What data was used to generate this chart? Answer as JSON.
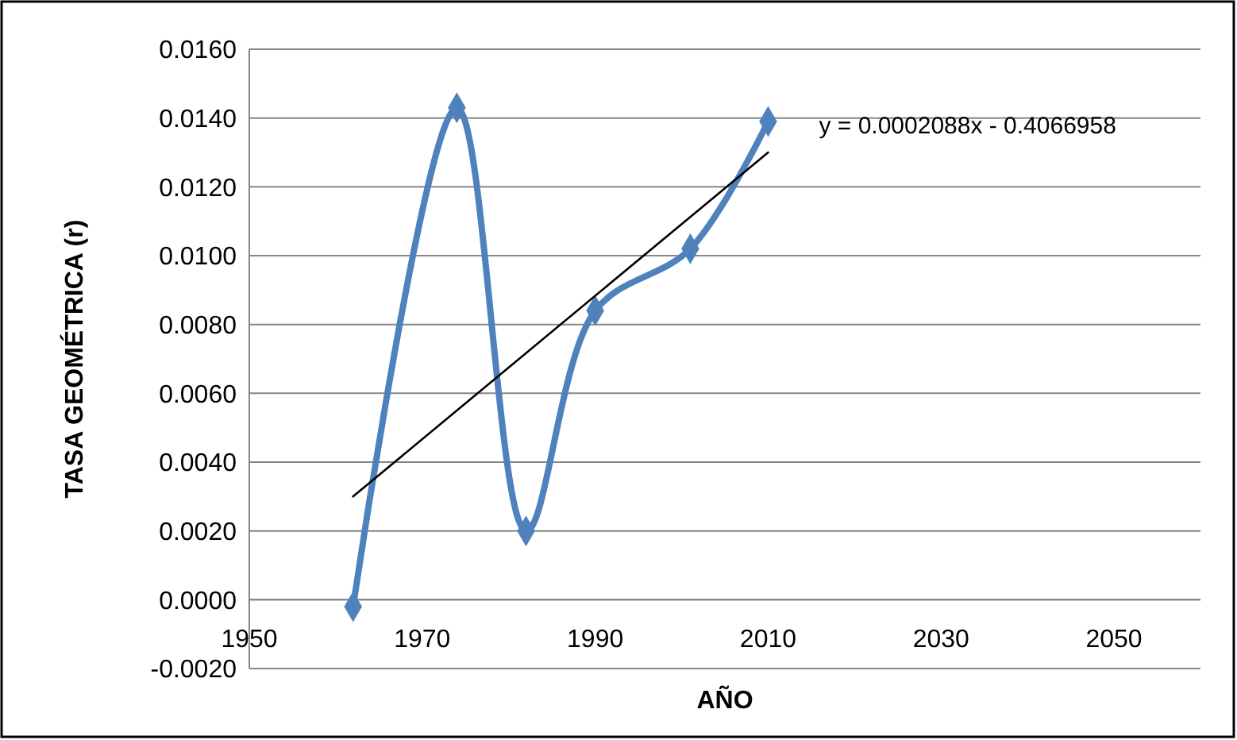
{
  "chart_data": {
    "type": "line",
    "xlabel": "AÑO",
    "ylabel": "TASA GEOMÉTRICA (r)",
    "xlim": [
      1950,
      2060
    ],
    "xticks": [
      1950,
      1970,
      1990,
      2010,
      2030,
      2050
    ],
    "ylim": [
      -0.002,
      0.016
    ],
    "yticks": [
      {
        "value": -0.002,
        "label": "-0.0020"
      },
      {
        "value": 0,
        "label": "0.0000"
      },
      {
        "value": 0.002,
        "label": "0.0020"
      },
      {
        "value": 0.004,
        "label": "0.0040"
      },
      {
        "value": 0.006,
        "label": "0.0060"
      },
      {
        "value": 0.008,
        "label": "0.0080"
      },
      {
        "value": 0.01,
        "label": "0.0100"
      },
      {
        "value": 0.012,
        "label": "0.0120"
      },
      {
        "value": 0.014,
        "label": "0.0140"
      },
      {
        "value": 0.016,
        "label": "0.0160"
      }
    ],
    "grid": "y",
    "series": [
      {
        "color": "#4f81bd",
        "x": [
          1962,
          1974,
          1982,
          1990,
          2001,
          2010
        ],
        "values": [
          -0.0002,
          0.0143,
          0.002,
          0.0084,
          0.0102,
          0.0139
        ],
        "marker": "diamond",
        "line_style": "solid"
      },
      {
        "color": "#000000",
        "x": [
          1962,
          2010
        ],
        "values": [
          0.003,
          0.013
        ],
        "marker": "none",
        "line_style": "solid"
      }
    ],
    "annotations": [
      {
        "text": "y = 0.0002088x - 0.4066958",
        "x": 2010,
        "y": 0.013
      }
    ]
  }
}
